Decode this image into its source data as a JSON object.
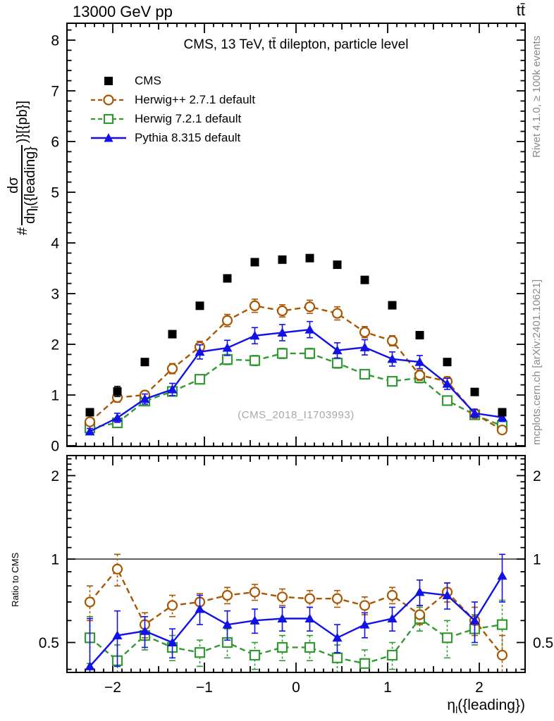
{
  "header": {
    "left": "13000 GeV pp",
    "right": "tt̄"
  },
  "plot_title": "CMS, 13 TeV, tt̄ dilepton, particle level",
  "watermark": "(CMS_2018_I1703993)",
  "side_notes": {
    "right_top": "Rivet 4.1.0, ≥ 100k events",
    "right_bottom": "mcplots.cern.ch [arXiv:2401.10621]"
  },
  "axis_labels": {
    "y_main": {
      "prefix": "#",
      "frac_num": "dσ",
      "frac_den_base": "dη",
      "frac_den_sub": "l",
      "frac_den_rest": "({leading}",
      "suffix": ")}[{pb}]"
    },
    "y_ratio": "Ratio to CMS",
    "x": {
      "base": "η",
      "sub": "l",
      "rest": "({leading})"
    }
  },
  "chart_data": {
    "type": "line",
    "title": "CMS, 13 TeV, ttbar dilepton, particle level",
    "xlabel": "eta_l({leading})",
    "xlim": [
      -2.5,
      2.5
    ],
    "xticks": [
      -2,
      -1,
      0,
      1,
      2
    ],
    "x": [
      -2.25,
      -1.95,
      -1.65,
      -1.35,
      -1.05,
      -0.75,
      -0.45,
      -0.15,
      0.15,
      0.45,
      0.75,
      1.05,
      1.35,
      1.65,
      1.95,
      2.25
    ],
    "main_panel": {
      "ylabel": "#{dsigma/deta_l({leading})}[{pb}]",
      "ylim": [
        0,
        8.33
      ],
      "yticks": [
        0,
        1,
        2,
        3,
        4,
        5,
        6,
        7,
        8
      ],
      "minor_step": 0.2,
      "series": [
        {
          "id": "cms",
          "name": "CMS",
          "color": "#000000",
          "marker": "square-filled",
          "line": "none",
          "values": [
            0.66,
            1.07,
            1.65,
            2.2,
            2.76,
            3.3,
            3.62,
            3.67,
            3.7,
            3.57,
            3.27,
            2.77,
            2.18,
            1.65,
            1.06,
            0.66
          ],
          "errors": [
            0.06,
            0.1,
            0.06,
            0.06,
            0.06,
            0.06,
            0.06,
            0.06,
            0.06,
            0.06,
            0.06,
            0.06,
            0.06,
            0.06,
            0.06,
            0.06
          ]
        },
        {
          "id": "herwigpp",
          "name": "Herwig++ 2.7.1 default",
          "color": "#aa5500",
          "marker": "circle-open",
          "line": "dashed",
          "values": [
            0.47,
            0.95,
            1.0,
            1.52,
            1.95,
            2.47,
            2.76,
            2.66,
            2.74,
            2.61,
            2.24,
            2.07,
            1.39,
            1.27,
            0.63,
            0.31
          ],
          "errors": [
            0.06,
            0.09,
            0.08,
            0.1,
            0.11,
            0.12,
            0.13,
            0.12,
            0.13,
            0.13,
            0.11,
            0.1,
            0.1,
            0.09,
            0.06,
            0.05
          ]
        },
        {
          "id": "herwig7",
          "name": "Herwig 7.2.1 default",
          "color": "#339933",
          "marker": "square-open",
          "line": "dashed",
          "values": [
            0.35,
            0.45,
            0.88,
            1.07,
            1.31,
            1.7,
            1.68,
            1.82,
            1.82,
            1.63,
            1.41,
            1.27,
            1.34,
            0.89,
            0.61,
            0.39
          ],
          "errors": [
            0.06,
            0.06,
            0.08,
            0.08,
            0.09,
            0.1,
            0.1,
            0.1,
            0.1,
            0.1,
            0.09,
            0.09,
            0.1,
            0.08,
            0.07,
            0.07
          ]
        },
        {
          "id": "pythia",
          "name": "Pythia 8.315 default",
          "color": "#1111e8",
          "marker": "triangle-filled",
          "line": "solid",
          "values": [
            0.28,
            0.55,
            0.92,
            1.11,
            1.85,
            1.93,
            2.17,
            2.23,
            2.29,
            1.88,
            1.94,
            1.71,
            1.65,
            1.22,
            0.64,
            0.56
          ],
          "errors": [
            0.06,
            0.09,
            0.1,
            0.12,
            0.14,
            0.15,
            0.16,
            0.16,
            0.16,
            0.15,
            0.15,
            0.14,
            0.13,
            0.11,
            0.08,
            0.08
          ]
        }
      ]
    },
    "ratio_panel": {
      "ylabel": "Ratio to CMS",
      "yscale": "log",
      "ylim": [
        0.39,
        2.36
      ],
      "yticks": [
        0.5,
        1,
        2
      ],
      "reference_line": 1,
      "series": [
        {
          "id": "herwigpp",
          "name": "Herwig++ 2.7.1 default",
          "color": "#aa5500",
          "marker": "circle-open",
          "line": "dashed",
          "values": [
            0.7,
            0.92,
            0.58,
            0.68,
            0.7,
            0.74,
            0.76,
            0.73,
            0.72,
            0.72,
            0.68,
            0.74,
            0.63,
            0.76,
            0.6,
            0.45
          ],
          "errors": [
            0.1,
            0.12,
            0.06,
            0.06,
            0.05,
            0.05,
            0.05,
            0.05,
            0.05,
            0.05,
            0.05,
            0.05,
            0.05,
            0.06,
            0.07,
            0.08
          ]
        },
        {
          "id": "herwig7",
          "name": "Herwig 7.2.1 default",
          "color": "#339933",
          "marker": "square-open",
          "line": "dashed",
          "values": [
            0.52,
            0.43,
            0.53,
            0.48,
            0.46,
            0.5,
            0.45,
            0.48,
            0.48,
            0.44,
            0.42,
            0.45,
            0.61,
            0.52,
            0.56,
            0.58
          ],
          "errors": [
            0.1,
            0.06,
            0.06,
            0.05,
            0.05,
            0.06,
            0.05,
            0.05,
            0.05,
            0.05,
            0.05,
            0.05,
            0.06,
            0.08,
            0.07,
            0.13
          ]
        },
        {
          "id": "pythia",
          "name": "Pythia 8.315 default",
          "color": "#1111e8",
          "marker": "triangle-filled",
          "line": "solid",
          "values": [
            0.41,
            0.53,
            0.55,
            0.5,
            0.66,
            0.58,
            0.6,
            0.61,
            0.61,
            0.52,
            0.58,
            0.61,
            0.76,
            0.74,
            0.6,
            0.87
          ],
          "errors": [
            0.2,
            0.12,
            0.07,
            0.06,
            0.08,
            0.07,
            0.06,
            0.06,
            0.06,
            0.06,
            0.06,
            0.06,
            0.08,
            0.08,
            0.1,
            0.17
          ]
        }
      ]
    }
  }
}
